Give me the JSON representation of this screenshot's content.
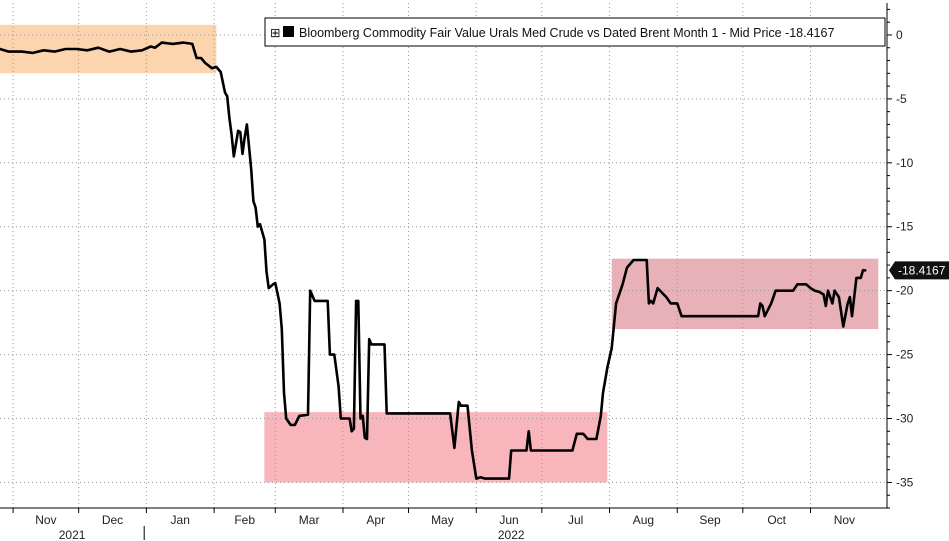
{
  "chart_data": {
    "type": "line",
    "title": "",
    "xlabel": "",
    "ylabel": "",
    "ylim": [
      -37,
      2.5
    ],
    "y_ticks": [
      0,
      -5,
      -10,
      -15,
      -20,
      -25,
      -30,
      -35
    ],
    "y_axis_position": "right",
    "grid": true,
    "legend": {
      "placement": "top-right",
      "marker": "⊞",
      "series_color": "#000000",
      "text": "Bloomberg Commodity Fair Value Urals Med Crude vs Dated Brent Month 1 - Mid Price -18.4167"
    },
    "last_value_label": "-18.4167",
    "x_domain": [
      "2021-10-26",
      "2022-12-06"
    ],
    "month_ticks": [
      {
        "label": "Nov",
        "date": "2021-11-01"
      },
      {
        "label": "Dec",
        "date": "2021-12-01"
      },
      {
        "label": "Jan",
        "date": "2022-01-01"
      },
      {
        "label": "Feb",
        "date": "2022-02-01"
      },
      {
        "label": "Mar",
        "date": "2022-03-01"
      },
      {
        "label": "Apr",
        "date": "2022-04-01"
      },
      {
        "label": "May",
        "date": "2022-05-01"
      },
      {
        "label": "Jun",
        "date": "2022-06-01"
      },
      {
        "label": "Jul",
        "date": "2022-07-01"
      },
      {
        "label": "Aug",
        "date": "2022-08-01"
      },
      {
        "label": "Sep",
        "date": "2022-09-01"
      },
      {
        "label": "Oct",
        "date": "2022-10-01"
      },
      {
        "label": "Nov",
        "date": "2022-11-01"
      }
    ],
    "year_labels": [
      {
        "label": "2021",
        "center_date": "2021-11-28"
      },
      {
        "label": "2022",
        "center_date": "2022-06-17"
      }
    ],
    "year_divider_date": "2021-12-31",
    "highlight_regions": [
      {
        "color": "#fcd4ad",
        "x0": "2021-10-26",
        "x1": "2022-02-02",
        "y0": -3.0,
        "y1": 0.8
      },
      {
        "color": "#f9b5bc",
        "x0": "2022-02-24",
        "x1": "2022-07-31",
        "y0": -35.0,
        "y1": -29.5
      },
      {
        "color": "#e8b1b8",
        "x0": "2022-08-02",
        "x1": "2022-12-02",
        "y0": -23.0,
        "y1": -17.5
      }
    ],
    "series": [
      {
        "name": "Bloomberg Commodity Fair Value Urals Med Crude vs Dated Brent Month 1 - Mid Price",
        "color": "#000000",
        "points": [
          [
            "2021-10-26",
            -1.1
          ],
          [
            "2021-10-30",
            -1.3
          ],
          [
            "2021-11-05",
            -1.3
          ],
          [
            "2021-11-10",
            -1.4
          ],
          [
            "2021-11-15",
            -1.2
          ],
          [
            "2021-11-20",
            -1.3
          ],
          [
            "2021-11-25",
            -1.1
          ],
          [
            "2021-11-30",
            -1.1
          ],
          [
            "2021-12-05",
            -1.2
          ],
          [
            "2021-12-10",
            -1.0
          ],
          [
            "2021-12-15",
            -1.3
          ],
          [
            "2021-12-20",
            -1.1
          ],
          [
            "2021-12-25",
            -1.3
          ],
          [
            "2021-12-30",
            -1.2
          ],
          [
            "2022-01-03",
            -0.9
          ],
          [
            "2022-01-05",
            -1.0
          ],
          [
            "2022-01-08",
            -0.6
          ],
          [
            "2022-01-13",
            -0.7
          ],
          [
            "2022-01-18",
            -0.6
          ],
          [
            "2022-01-22",
            -0.7
          ],
          [
            "2022-01-24",
            -1.8
          ],
          [
            "2022-01-26",
            -1.8
          ],
          [
            "2022-01-28",
            -2.2
          ],
          [
            "2022-01-31",
            -2.6
          ],
          [
            "2022-02-02",
            -2.5
          ],
          [
            "2022-02-04",
            -2.9
          ],
          [
            "2022-02-06",
            -4.5
          ],
          [
            "2022-02-07",
            -4.8
          ],
          [
            "2022-02-08",
            -6.5
          ],
          [
            "2022-02-09",
            -7.8
          ],
          [
            "2022-02-10",
            -9.5
          ],
          [
            "2022-02-11",
            -8.5
          ],
          [
            "2022-02-12",
            -7.5
          ],
          [
            "2022-02-13",
            -7.6
          ],
          [
            "2022-02-14",
            -9.3
          ],
          [
            "2022-02-15",
            -8.0
          ],
          [
            "2022-02-16",
            -7.0
          ],
          [
            "2022-02-18",
            -10.5
          ],
          [
            "2022-02-19",
            -13.0
          ],
          [
            "2022-02-20",
            -13.5
          ],
          [
            "2022-02-21",
            -15.0
          ],
          [
            "2022-02-22",
            -14.8
          ],
          [
            "2022-02-24",
            -16.0
          ],
          [
            "2022-02-25",
            -18.5
          ],
          [
            "2022-02-26",
            -19.8
          ],
          [
            "2022-02-28",
            -19.5
          ],
          [
            "2022-03-01",
            -19.4
          ],
          [
            "2022-03-03",
            -21.0
          ],
          [
            "2022-03-04",
            -23.0
          ],
          [
            "2022-03-05",
            -28.0
          ],
          [
            "2022-03-06",
            -30.0
          ],
          [
            "2022-03-08",
            -30.5
          ],
          [
            "2022-03-10",
            -30.5
          ],
          [
            "2022-03-12",
            -29.8
          ],
          [
            "2022-03-16",
            -29.7
          ],
          [
            "2022-03-17",
            -20.0
          ],
          [
            "2022-03-19",
            -20.8
          ],
          [
            "2022-03-25",
            -20.8
          ],
          [
            "2022-03-26",
            -25.0
          ],
          [
            "2022-03-28",
            -25.0
          ],
          [
            "2022-03-30",
            -27.5
          ],
          [
            "2022-03-31",
            -30.0
          ],
          [
            "2022-04-04",
            -30.0
          ],
          [
            "2022-04-05",
            -31.0
          ],
          [
            "2022-04-06",
            -30.8
          ],
          [
            "2022-04-07",
            -20.8
          ],
          [
            "2022-04-08",
            -20.8
          ],
          [
            "2022-04-09",
            -30.0
          ],
          [
            "2022-04-10",
            -29.8
          ],
          [
            "2022-04-11",
            -31.5
          ],
          [
            "2022-04-12",
            -31.6
          ],
          [
            "2022-04-13",
            -23.8
          ],
          [
            "2022-04-14",
            -24.2
          ],
          [
            "2022-04-20",
            -24.2
          ],
          [
            "2022-04-21",
            -29.6
          ],
          [
            "2022-05-01",
            -29.6
          ],
          [
            "2022-05-10",
            -29.6
          ],
          [
            "2022-05-20",
            -29.6
          ],
          [
            "2022-05-22",
            -32.3
          ],
          [
            "2022-05-24",
            -28.7
          ],
          [
            "2022-05-25",
            -29.0
          ],
          [
            "2022-05-28",
            -29.0
          ],
          [
            "2022-05-30",
            -32.5
          ],
          [
            "2022-06-01",
            -34.7
          ],
          [
            "2022-06-03",
            -34.6
          ],
          [
            "2022-06-05",
            -34.7
          ],
          [
            "2022-06-16",
            -34.7
          ],
          [
            "2022-06-17",
            -32.5
          ],
          [
            "2022-06-24",
            -32.5
          ],
          [
            "2022-06-25",
            -31.0
          ],
          [
            "2022-06-26",
            -32.5
          ],
          [
            "2022-07-10",
            -32.5
          ],
          [
            "2022-07-15",
            -32.5
          ],
          [
            "2022-07-17",
            -31.2
          ],
          [
            "2022-07-20",
            -31.2
          ],
          [
            "2022-07-22",
            -31.6
          ],
          [
            "2022-07-26",
            -31.6
          ],
          [
            "2022-07-28",
            -29.8
          ],
          [
            "2022-07-29",
            -28.0
          ],
          [
            "2022-07-31",
            -26.0
          ],
          [
            "2022-08-02",
            -24.5
          ],
          [
            "2022-08-04",
            -21.0
          ],
          [
            "2022-08-07",
            -19.5
          ],
          [
            "2022-08-09",
            -18.2
          ],
          [
            "2022-08-12",
            -17.6
          ],
          [
            "2022-08-15",
            -17.6
          ],
          [
            "2022-08-18",
            -17.6
          ],
          [
            "2022-08-19",
            -21.0
          ],
          [
            "2022-08-20",
            -20.8
          ],
          [
            "2022-08-21",
            -21.0
          ],
          [
            "2022-08-23",
            -19.8
          ],
          [
            "2022-08-27",
            -20.5
          ],
          [
            "2022-08-29",
            -21.0
          ],
          [
            "2022-09-01",
            -21.0
          ],
          [
            "2022-09-03",
            -22.0
          ],
          [
            "2022-09-15",
            -22.0
          ],
          [
            "2022-10-01",
            -22.0
          ],
          [
            "2022-10-08",
            -22.0
          ],
          [
            "2022-10-09",
            -21.0
          ],
          [
            "2022-10-10",
            -21.2
          ],
          [
            "2022-10-11",
            -22.0
          ],
          [
            "2022-10-14",
            -21.0
          ],
          [
            "2022-10-16",
            -20.0
          ],
          [
            "2022-10-24",
            -20.0
          ],
          [
            "2022-10-26",
            -19.5
          ],
          [
            "2022-10-30",
            -19.5
          ],
          [
            "2022-11-01",
            -19.8
          ],
          [
            "2022-11-03",
            -20.0
          ],
          [
            "2022-11-05",
            -20.1
          ],
          [
            "2022-11-07",
            -20.3
          ],
          [
            "2022-11-08",
            -21.2
          ],
          [
            "2022-11-09",
            -20.0
          ],
          [
            "2022-11-10",
            -20.5
          ],
          [
            "2022-11-11",
            -21.0
          ],
          [
            "2022-11-12",
            -20.0
          ],
          [
            "2022-11-14",
            -20.5
          ],
          [
            "2022-11-16",
            -22.8
          ],
          [
            "2022-11-18",
            -21.0
          ],
          [
            "2022-11-19",
            -20.5
          ],
          [
            "2022-11-20",
            -22.0
          ],
          [
            "2022-11-21",
            -20.5
          ],
          [
            "2022-11-22",
            -19.0
          ],
          [
            "2022-11-24",
            -19.0
          ],
          [
            "2022-11-25",
            -18.4
          ],
          [
            "2022-11-26",
            -18.4167
          ]
        ]
      }
    ]
  }
}
